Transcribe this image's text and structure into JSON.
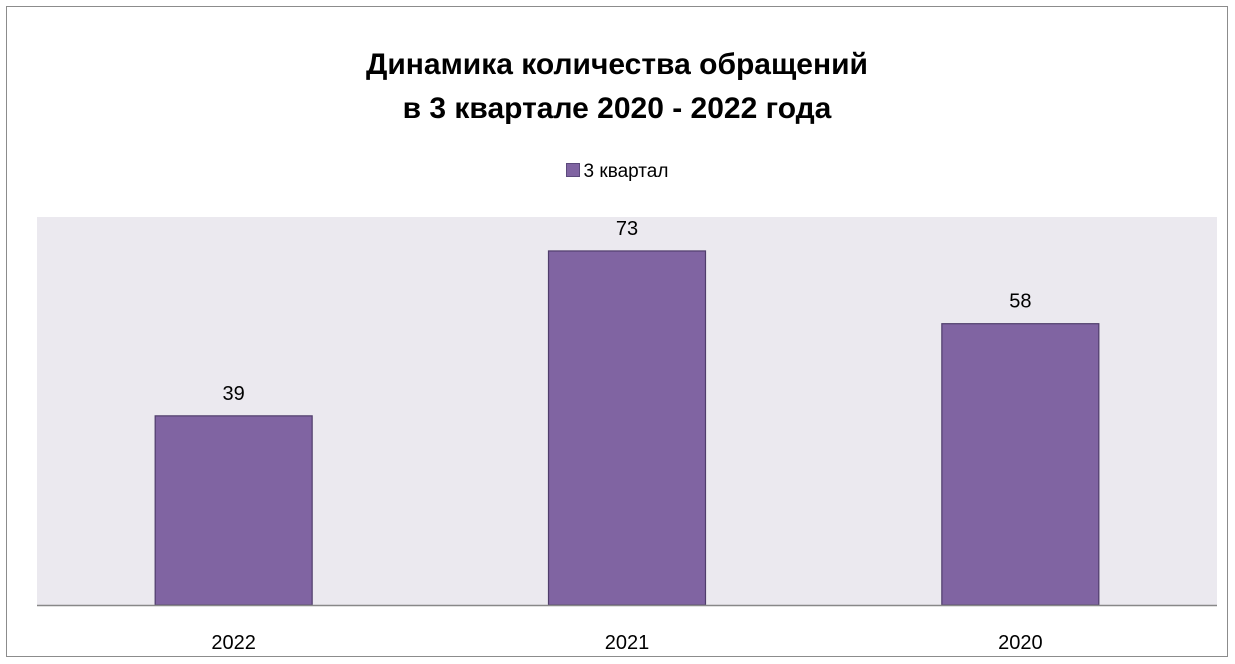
{
  "chart_data": {
    "type": "bar",
    "title_line1": "Динамика количества обращений",
    "title_line2": "в 3 квартале 2020 - 2022 года",
    "categories": [
      "2022",
      "2021",
      "2020"
    ],
    "series": [
      {
        "name": "3 квартал",
        "values": [
          39,
          73,
          58
        ],
        "color": "#8064a2"
      }
    ],
    "ylim": [
      0,
      80
    ],
    "xlabel": "",
    "ylabel": "",
    "legend_position": "top",
    "plot_background": "#ebe9ef",
    "grid": false,
    "data_labels": true
  }
}
